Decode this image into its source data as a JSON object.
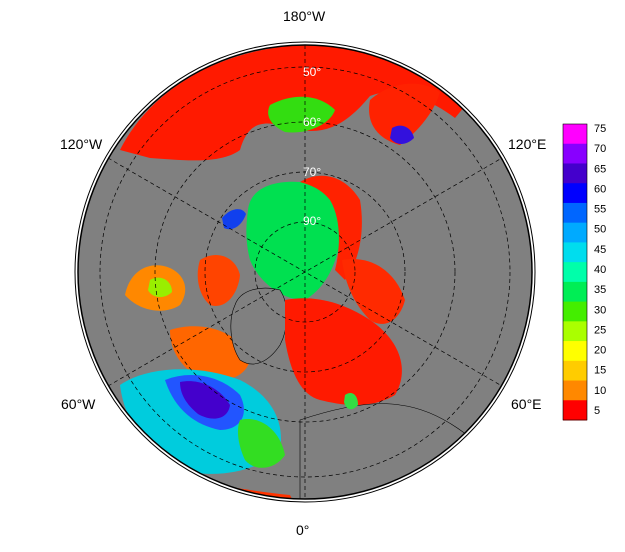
{
  "map": {
    "projection": "north polar stereographic",
    "background_color": "#808080",
    "meridian_labels": {
      "top": "180°W",
      "bottom": "0°",
      "upper_left": "120°W",
      "upper_right": "120°E",
      "lower_left": "60°W",
      "lower_right": "60°E"
    },
    "latitude_labels": [
      "50°",
      "60°",
      "70°",
      "90°"
    ]
  },
  "colorbar": {
    "ticks": [
      "75",
      "70",
      "65",
      "60",
      "55",
      "50",
      "45",
      "40",
      "35",
      "30",
      "25",
      "20",
      "15",
      "10",
      "5"
    ],
    "colors": [
      "#ff00ff",
      "#8800ff",
      "#4400cc",
      "#0000ff",
      "#0066ff",
      "#00aaff",
      "#00ddee",
      "#00ffaa",
      "#00ee55",
      "#44ee00",
      "#aaff00",
      "#ffff00",
      "#ffcc00",
      "#ff8800",
      "#ff0000"
    ]
  }
}
